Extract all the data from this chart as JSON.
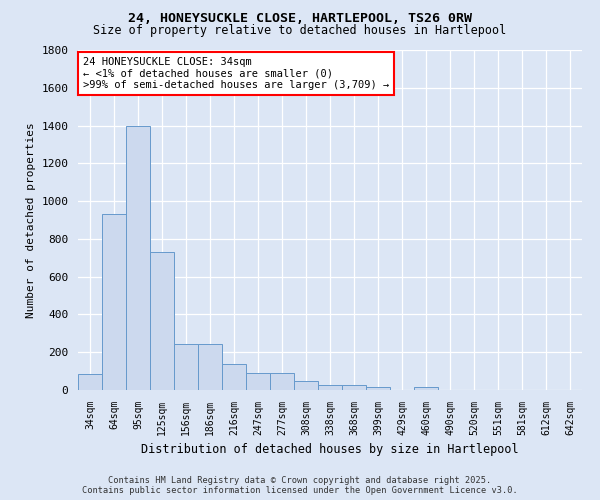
{
  "title_line1": "24, HONEYSUCKLE CLOSE, HARTLEPOOL, TS26 0RW",
  "title_line2": "Size of property relative to detached houses in Hartlepool",
  "xlabel": "Distribution of detached houses by size in Hartlepool",
  "ylabel": "Number of detached properties",
  "categories": [
    "34sqm",
    "64sqm",
    "95sqm",
    "125sqm",
    "156sqm",
    "186sqm",
    "216sqm",
    "247sqm",
    "277sqm",
    "308sqm",
    "338sqm",
    "368sqm",
    "399sqm",
    "429sqm",
    "460sqm",
    "490sqm",
    "520sqm",
    "551sqm",
    "581sqm",
    "612sqm",
    "642sqm"
  ],
  "values": [
    85,
    930,
    1400,
    730,
    245,
    245,
    140,
    90,
    90,
    50,
    25,
    25,
    15,
    0,
    15,
    0,
    0,
    0,
    0,
    0,
    0
  ],
  "bar_color": "#ccd9ee",
  "bar_edge_color": "#6699cc",
  "background_color": "#dce6f5",
  "grid_color": "#c0cfe8",
  "annotation_text": "24 HONEYSUCKLE CLOSE: 34sqm\n← <1% of detached houses are smaller (0)\n>99% of semi-detached houses are larger (3,709) →",
  "ylim": [
    0,
    1800
  ],
  "yticks": [
    0,
    200,
    400,
    600,
    800,
    1000,
    1200,
    1400,
    1600,
    1800
  ],
  "footer_line1": "Contains HM Land Registry data © Crown copyright and database right 2025.",
  "footer_line2": "Contains public sector information licensed under the Open Government Licence v3.0."
}
